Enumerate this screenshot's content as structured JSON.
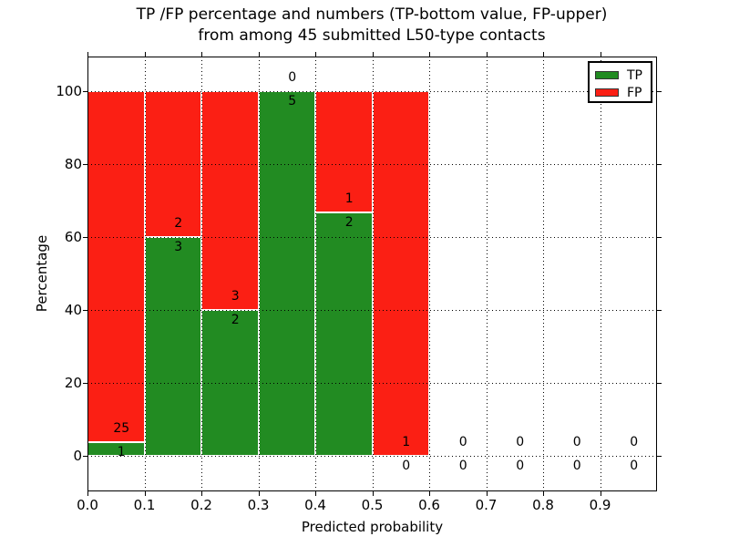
{
  "figure": {
    "title_line1": "TP /FP percentage and numbers (TP-bottom value, FP-upper)",
    "title_line2": "from among 45 submitted L50-type contacts"
  },
  "chart_data": {
    "type": "bar",
    "stacked": true,
    "normalization": "each bin scaled to 100 percent (TP bottom, FP upper)",
    "title": "TP /FP percentage and numbers (TP-bottom value, FP-upper) from among 45 submitted L50-type contacts",
    "xlabel": "Predicted probability",
    "ylabel": "Percentage",
    "xlim": [
      0.0,
      1.0
    ],
    "ylim": [
      -10,
      110
    ],
    "x_tick_labels": [
      "0.0",
      "0.1",
      "0.2",
      "0.3",
      "0.4",
      "0.5",
      "0.6",
      "0.7",
      "0.8",
      "0.9"
    ],
    "y_ticks": [
      0,
      20,
      40,
      60,
      80,
      100
    ],
    "grid": {
      "style": "dotted",
      "color": "#000000",
      "drawn_over_bars": true
    },
    "colors": {
      "tp": "#228b22",
      "fp": "#fb1f14",
      "bar_edge": "#ffffff"
    },
    "legend": {
      "position": "upper right",
      "entries": [
        {
          "label": "TP",
          "color": "#228b22"
        },
        {
          "label": "FP",
          "color": "#fb1f14"
        }
      ]
    },
    "bins": [
      {
        "x_range": [
          0.0,
          0.1
        ],
        "tp_count": 1,
        "fp_count": 25,
        "tp_pct": 3.8,
        "total_pct": 100
      },
      {
        "x_range": [
          0.1,
          0.2
        ],
        "tp_count": 3,
        "fp_count": 2,
        "tp_pct": 60,
        "total_pct": 100
      },
      {
        "x_range": [
          0.2,
          0.3
        ],
        "tp_count": 2,
        "fp_count": 3,
        "tp_pct": 40,
        "total_pct": 100
      },
      {
        "x_range": [
          0.3,
          0.4
        ],
        "tp_count": 5,
        "fp_count": 0,
        "tp_pct": 100,
        "total_pct": 100
      },
      {
        "x_range": [
          0.4,
          0.5
        ],
        "tp_count": 2,
        "fp_count": 1,
        "tp_pct": 66.7,
        "total_pct": 100
      },
      {
        "x_range": [
          0.5,
          0.6
        ],
        "tp_count": 0,
        "fp_count": 1,
        "tp_pct": 0,
        "total_pct": 100
      },
      {
        "x_range": [
          0.6,
          0.7
        ],
        "tp_count": 0,
        "fp_count": 0,
        "tp_pct": 0,
        "total_pct": 0
      },
      {
        "x_range": [
          0.7,
          0.8
        ],
        "tp_count": 0,
        "fp_count": 0,
        "tp_pct": 0,
        "total_pct": 0
      },
      {
        "x_range": [
          0.8,
          0.9
        ],
        "tp_count": 0,
        "fp_count": 0,
        "tp_pct": 0,
        "total_pct": 0
      },
      {
        "x_range": [
          0.9,
          1.0
        ],
        "tp_count": 0,
        "fp_count": 0,
        "tp_pct": 0,
        "total_pct": 0
      }
    ]
  }
}
